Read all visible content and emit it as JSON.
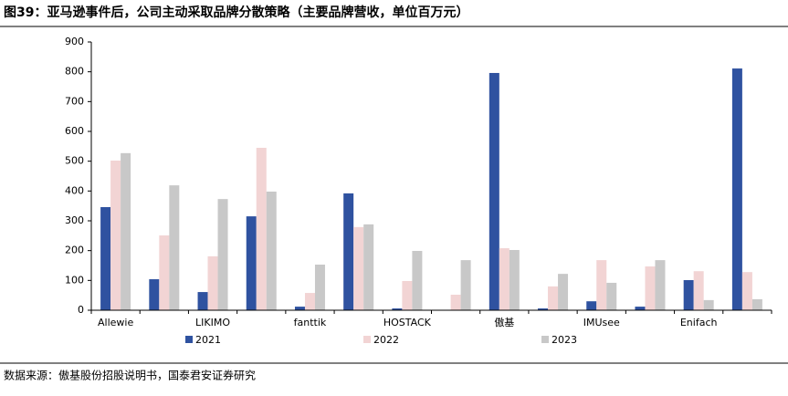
{
  "chart_data": {
    "type": "bar",
    "title": "图39：亚马逊事件后，公司主动采取品牌分散策略（主要品牌营收，单位百万元）",
    "source": "数据来源：傲基股份招股说明书，国泰君安证券研究",
    "categories": [
      "Allewie",
      null,
      "LIKIMO",
      null,
      "fanttik",
      null,
      "HOSTACK",
      null,
      "傲基",
      null,
      "IMUsee",
      null,
      "Enifach",
      null
    ],
    "series": [
      {
        "name": "2021",
        "color": "#2f52a0",
        "values": [
          346,
          104,
          61,
          315,
          12,
          392,
          6,
          0,
          796,
          6,
          30,
          12,
          101,
          811
        ]
      },
      {
        "name": "2022",
        "color": "#f2d4d4",
        "values": [
          502,
          251,
          181,
          545,
          58,
          279,
          98,
          52,
          208,
          80,
          168,
          147,
          131,
          128
        ]
      },
      {
        "name": "2023",
        "color": "#c8c8c8",
        "values": [
          527,
          419,
          373,
          398,
          153,
          288,
          199,
          168,
          202,
          122,
          92,
          168,
          34,
          37
        ]
      }
    ],
    "ylim": [
      0,
      900
    ],
    "yticks": [
      0,
      100,
      200,
      300,
      400,
      500,
      600,
      700,
      800,
      900
    ],
    "grid": false,
    "legend": "bottom"
  }
}
